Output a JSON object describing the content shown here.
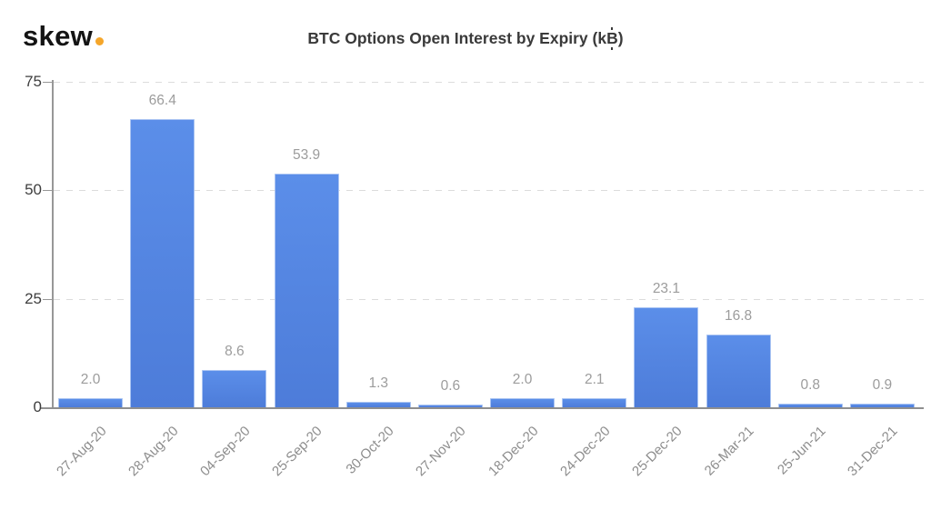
{
  "header": {
    "logo_text": "skew",
    "logo_full": "skew.",
    "logo_dot_color": "#f5a62a"
  },
  "chart_data": {
    "type": "bar",
    "title": "BTC Options Open Interest by Expiry (k₿)",
    "categories": [
      "27-Aug-20",
      "28-Aug-20",
      "04-Sep-20",
      "25-Sep-20",
      "30-Oct-20",
      "27-Nov-20",
      "18-Dec-20",
      "24-Dec-20",
      "25-Dec-20",
      "26-Mar-21",
      "25-Jun-21",
      "31-Dec-21"
    ],
    "values": [
      2.0,
      66.4,
      8.6,
      53.9,
      1.3,
      0.6,
      2.0,
      2.1,
      23.1,
      16.8,
      0.8,
      0.9
    ],
    "bar_labels": [
      "2.0",
      "66.4",
      "8.6",
      "53.9",
      "1.3",
      "0.6",
      "2.0",
      "2.1",
      "23.1",
      "16.8",
      "0.8",
      "0.9"
    ],
    "xlabel": "",
    "ylabel": "",
    "yticks": [
      0,
      25,
      50,
      75
    ],
    "ytick_labels": [
      "0",
      "25",
      "50",
      "75"
    ],
    "ylim": [
      0,
      75
    ],
    "grid": "horizontal-dashed",
    "legend": "none",
    "colors": {
      "bar_fill_top": "#5b8ee9",
      "bar_fill_bottom": "#4d7cd9",
      "bar_border": "#aac4f2",
      "value_label": "#9c9c9c",
      "ytick_label": "#3e3e3e",
      "xtick_label": "#8d8d8d",
      "gridline": "#dcdcdc",
      "axis_line": "#979797",
      "title": "#3a3a3a",
      "logo_dot": "#f5a62a"
    }
  }
}
